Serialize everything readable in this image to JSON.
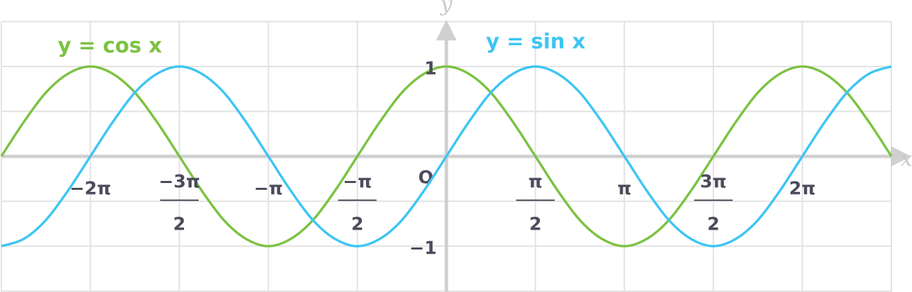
{
  "chart_data": {
    "type": "line",
    "x_label": "x",
    "y_label": "y",
    "origin_label": "O",
    "x": [
      -7.854,
      -7.461,
      -7.069,
      -6.676,
      -6.283,
      -5.89,
      -5.498,
      -5.105,
      -4.712,
      -4.32,
      -3.927,
      -3.534,
      -3.142,
      -2.749,
      -2.356,
      -1.963,
      -1.571,
      -1.178,
      -0.785,
      -0.393,
      0,
      0.393,
      0.785,
      1.178,
      1.571,
      1.963,
      2.356,
      2.749,
      3.142,
      3.534,
      3.927,
      4.32,
      4.712,
      5.105,
      5.498,
      5.89,
      6.283,
      6.676,
      7.069,
      7.461,
      7.854
    ],
    "series": [
      {
        "name": "y = cos x",
        "color": "#7cc242",
        "values": [
          0,
          0.38,
          0.71,
          0.92,
          1,
          0.92,
          0.71,
          0.38,
          0,
          -0.38,
          -0.71,
          -0.92,
          -1,
          -0.92,
          -0.71,
          -0.38,
          0,
          0.38,
          0.71,
          0.92,
          1,
          0.92,
          0.71,
          0.38,
          0,
          -0.38,
          -0.71,
          -0.92,
          -1,
          -0.92,
          -0.71,
          -0.38,
          0,
          0.38,
          0.71,
          0.92,
          1,
          0.92,
          0.71,
          0.38,
          0
        ]
      },
      {
        "name": "y = sin x",
        "color": "#3ec5f3",
        "values": [
          -1,
          -0.92,
          -0.71,
          -0.38,
          0,
          0.38,
          0.71,
          0.92,
          1,
          0.92,
          0.71,
          0.38,
          0,
          -0.38,
          -0.71,
          -0.92,
          -1,
          -0.92,
          -0.71,
          -0.38,
          0,
          0.38,
          0.71,
          0.92,
          1,
          0.92,
          0.71,
          0.38,
          0,
          -0.38,
          -0.71,
          -0.92,
          -1,
          -0.92,
          -0.71,
          -0.38,
          0,
          0.38,
          0.71,
          0.92,
          1
        ]
      }
    ],
    "xlim": [
      -7.854,
      7.854
    ],
    "ylim": [
      -1.51,
      1.74
    ],
    "xticks": [
      {
        "value": -6.283,
        "label": "−2π"
      },
      {
        "value": -4.712,
        "label": "−3π",
        "denominator": "2"
      },
      {
        "value": -3.142,
        "label": "−π"
      },
      {
        "value": -1.571,
        "label": "−π",
        "denominator": "2"
      },
      {
        "value": 1.571,
        "label": "π",
        "denominator": "2"
      },
      {
        "value": 3.142,
        "label": "π"
      },
      {
        "value": 4.712,
        "label": "3π",
        "denominator": "2"
      },
      {
        "value": 6.283,
        "label": "2π"
      }
    ],
    "yticks": [
      1,
      {
        "value": -1,
        "label": "−1"
      }
    ],
    "xgrid": [
      -7.854,
      -6.283,
      -4.712,
      -3.142,
      -1.571,
      0,
      1.571,
      3.142,
      4.712,
      6.283,
      7.854
    ],
    "ygrid": [
      -1.5,
      -1,
      -0.5,
      0,
      0.5,
      1,
      1.5
    ],
    "grid": true
  }
}
